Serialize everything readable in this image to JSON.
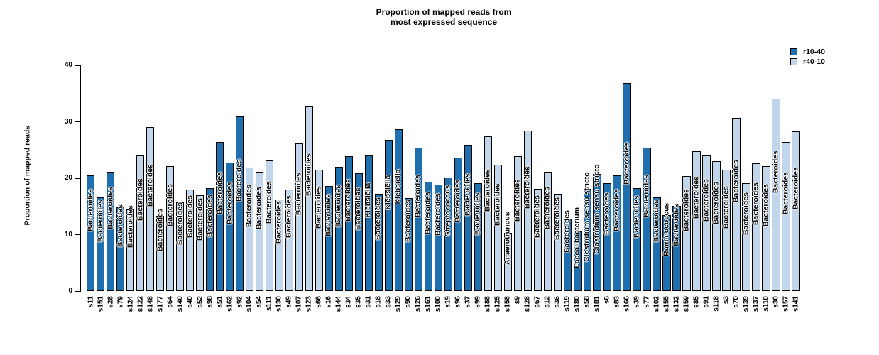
{
  "chart_data": {
    "type": "bar",
    "title": "Proportion of mapped reads from most expressed sequence",
    "title_lines": [
      "Proportion of mapped reads from",
      "most expressed sequence"
    ],
    "xlabel": "",
    "ylabel": "Proportion of mapped reads",
    "ylim": [
      0,
      40
    ],
    "yticks": [
      0,
      10,
      20,
      30,
      40
    ],
    "grid": false,
    "legend_position": "top-right",
    "legend": [
      {
        "label": "r10-40",
        "color": "#1F6FAF"
      },
      {
        "label": "r40-10",
        "color": "#C1D5EB"
      }
    ],
    "series_colors": {
      "r10-40": "#1F6FAF",
      "r40-10": "#C1D5EB"
    },
    "bar_border_color": "#000000",
    "bars": [
      {
        "sample": "s11",
        "taxon": "Bacteroides",
        "group": "r10-40",
        "value": 20.5
      },
      {
        "sample": "s151",
        "taxon": "Bacteroides",
        "group": "r10-40",
        "value": 16.6
      },
      {
        "sample": "s28",
        "taxon": "Bacteroides",
        "group": "r10-40",
        "value": 21.1
      },
      {
        "sample": "s79",
        "taxon": "Bacteroides",
        "group": "r10-40",
        "value": 14.9
      },
      {
        "sample": "s124",
        "taxon": "Bacteroides",
        "group": "r40-10",
        "value": 14.5
      },
      {
        "sample": "s122",
        "taxon": "Bacteroides",
        "group": "r40-10",
        "value": 24.1
      },
      {
        "sample": "s148",
        "taxon": "Bacteroides",
        "group": "r40-10",
        "value": 29.1
      },
      {
        "sample": "s177",
        "taxon": "Bacteroides",
        "group": "r40-10",
        "value": 13.4
      },
      {
        "sample": "s64",
        "taxon": "Bacteroides",
        "group": "r40-10",
        "value": 22.2
      },
      {
        "sample": "s140",
        "taxon": "Bacteroides",
        "group": "r40-10",
        "value": 15.7
      },
      {
        "sample": "s40",
        "taxon": "Bacteroides",
        "group": "r40-10",
        "value": 18.0
      },
      {
        "sample": "s52",
        "taxon": "Bacteroides",
        "group": "r40-10",
        "value": 17.0
      },
      {
        "sample": "s98",
        "taxon": "Bacteroides",
        "group": "r10-40",
        "value": 18.3
      },
      {
        "sample": "s51",
        "taxon": "Bacteroides",
        "group": "r10-40",
        "value": 26.4
      },
      {
        "sample": "s162",
        "taxon": "Bacteroides",
        "group": "r10-40",
        "value": 22.8
      },
      {
        "sample": "s92",
        "taxon": "Bacteroides",
        "group": "r10-40",
        "value": 31.0
      },
      {
        "sample": "s104",
        "taxon": "Bacteroides",
        "group": "r40-10",
        "value": 21.9
      },
      {
        "sample": "s54",
        "taxon": "Bacteroides",
        "group": "r40-10",
        "value": 21.2
      },
      {
        "sample": "s111",
        "taxon": "Bacteroides",
        "group": "r40-10",
        "value": 23.2
      },
      {
        "sample": "s130",
        "taxon": "Bacteroides",
        "group": "r40-10",
        "value": 16.2
      },
      {
        "sample": "s49",
        "taxon": "Bacteroides",
        "group": "r40-10",
        "value": 18.0
      },
      {
        "sample": "s107",
        "taxon": "Bacteroides",
        "group": "r40-10",
        "value": 26.2
      },
      {
        "sample": "s123",
        "taxon": "Bacteroides",
        "group": "r40-10",
        "value": 32.9
      },
      {
        "sample": "s66",
        "taxon": "Bacteroides",
        "group": "r40-10",
        "value": 21.5
      },
      {
        "sample": "s16",
        "taxon": "Bacteroides",
        "group": "r10-40",
        "value": 18.7
      },
      {
        "sample": "s144",
        "taxon": "Bacteroides",
        "group": "r10-40",
        "value": 22.0
      },
      {
        "sample": "s34",
        "taxon": "Bacteroides",
        "group": "r10-40",
        "value": 23.9
      },
      {
        "sample": "s35",
        "taxon": "Bacteroides",
        "group": "r10-40",
        "value": 20.9
      },
      {
        "sample": "s31",
        "taxon": "Klebsiella",
        "group": "r10-40",
        "value": 24.0
      },
      {
        "sample": "s18",
        "taxon": "Bacteroides",
        "group": "r10-40",
        "value": 17.3
      },
      {
        "sample": "s33",
        "taxon": "Klebsiella",
        "group": "r10-40",
        "value": 26.8
      },
      {
        "sample": "s129",
        "taxon": "Klebsiella",
        "group": "r10-40",
        "value": 28.7
      },
      {
        "sample": "s90",
        "taxon": "Bacteroides",
        "group": "r10-40",
        "value": 16.5
      },
      {
        "sample": "s126",
        "taxon": "Bacteroides",
        "group": "r10-40",
        "value": 25.4
      },
      {
        "sample": "s161",
        "taxon": "Bacteroides",
        "group": "r10-40",
        "value": 19.4
      },
      {
        "sample": "s100",
        "taxon": "Bacteroides",
        "group": "r10-40",
        "value": 18.9
      },
      {
        "sample": "s19",
        "taxon": "Streptococcus",
        "group": "r10-40",
        "value": 20.2
      },
      {
        "sample": "s96",
        "taxon": "Bacteroides",
        "group": "r10-40",
        "value": 23.7
      },
      {
        "sample": "s37",
        "taxon": "Bacteroides",
        "group": "r10-40",
        "value": 25.9
      },
      {
        "sample": "s99",
        "taxon": "Bacteroides",
        "group": "r10-40",
        "value": 19.2
      },
      {
        "sample": "s188",
        "taxon": "Bacteroides",
        "group": "r40-10",
        "value": 27.4
      },
      {
        "sample": "s125",
        "taxon": "Bacteroides",
        "group": "r40-10",
        "value": 22.4
      },
      {
        "sample": "s158",
        "taxon": "Anaerotruncus",
        "group": "r40-10",
        "value": 10.3
      },
      {
        "sample": "s9",
        "taxon": "Bacteroides",
        "group": "r40-10",
        "value": 23.9
      },
      {
        "sample": "s128",
        "taxon": "Bacteroides",
        "group": "r40-10",
        "value": 28.5
      },
      {
        "sample": "s67",
        "taxon": "Bacteroides",
        "group": "r40-10",
        "value": 18.1
      },
      {
        "sample": "s12",
        "taxon": "Bacteroides",
        "group": "r40-10",
        "value": 21.1
      },
      {
        "sample": "s36",
        "taxon": "Bacteroides",
        "group": "r40-10",
        "value": 17.3
      },
      {
        "sample": "s119",
        "taxon": "Bacteroides",
        "group": "r10-40",
        "value": 12.9
      },
      {
        "sample": "s180",
        "taxon": "Faecalibacterium",
        "group": "r10-40",
        "value": 10.6
      },
      {
        "sample": "s58",
        "taxon": "Clostridium sensu stricto",
        "group": "r10-40",
        "value": 18.1
      },
      {
        "sample": "s181",
        "taxon": "Clostridium sensu stricto",
        "group": "r10-40",
        "value": 20.8
      },
      {
        "sample": "s6",
        "taxon": "Bacteroides",
        "group": "r10-40",
        "value": 19.1
      },
      {
        "sample": "s83",
        "taxon": "Bacteroides",
        "group": "r10-40",
        "value": 20.5
      },
      {
        "sample": "s166",
        "taxon": "Bacteroides",
        "group": "r10-40",
        "value": 36.9
      },
      {
        "sample": "s39",
        "taxon": "Bacteroides",
        "group": "r10-40",
        "value": 18.2
      },
      {
        "sample": "s77",
        "taxon": "Bacteroides",
        "group": "r10-40",
        "value": 25.4
      },
      {
        "sample": "s102",
        "taxon": "Bacteroides",
        "group": "r10-40",
        "value": 16.6
      },
      {
        "sample": "s155",
        "taxon": "Ruminococcus",
        "group": "r10-40",
        "value": 13.5
      },
      {
        "sample": "s132",
        "taxon": "Bacteroides",
        "group": "r10-40",
        "value": 15.1
      },
      {
        "sample": "s159",
        "taxon": "Bacteroides",
        "group": "r40-10",
        "value": 20.4
      },
      {
        "sample": "s85",
        "taxon": "Bacteroides",
        "group": "r40-10",
        "value": 24.8
      },
      {
        "sample": "s91",
        "taxon": "Bacteroides",
        "group": "r40-10",
        "value": 24.0
      },
      {
        "sample": "s118",
        "taxon": "Bacteroides",
        "group": "r40-10",
        "value": 23.0
      },
      {
        "sample": "s3",
        "taxon": "Bacteroides",
        "group": "r40-10",
        "value": 21.5
      },
      {
        "sample": "s70",
        "taxon": "Bacteroides",
        "group": "r40-10",
        "value": 30.7
      },
      {
        "sample": "s139",
        "taxon": "Bacteroides",
        "group": "r40-10",
        "value": 19.1
      },
      {
        "sample": "s137",
        "taxon": "Bacteroides",
        "group": "r40-10",
        "value": 22.7
      },
      {
        "sample": "s110",
        "taxon": "Bacteroides",
        "group": "r40-10",
        "value": 22.2
      },
      {
        "sample": "s30",
        "taxon": "Bacteroides",
        "group": "r40-10",
        "value": 34.1
      },
      {
        "sample": "s157",
        "taxon": "Bacteroides",
        "group": "r40-10",
        "value": 26.4
      },
      {
        "sample": "s141",
        "taxon": "Bacteroides",
        "group": "r40-10",
        "value": 28.3
      }
    ]
  }
}
